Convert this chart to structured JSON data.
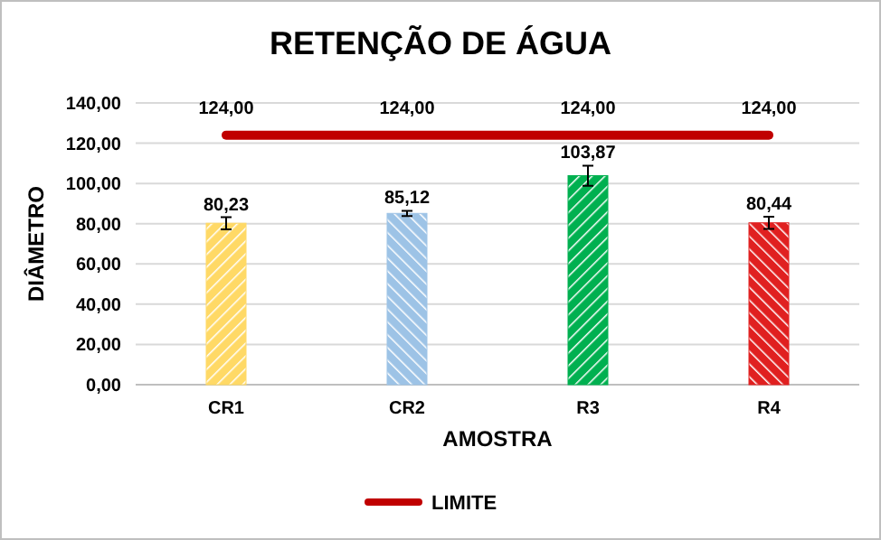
{
  "chart_data": {
    "type": "bar",
    "title": "RETENÇÃO DE ÁGUA",
    "xlabel": "AMOSTRA",
    "ylabel": "DIÂMETRO",
    "categories": [
      "CR1",
      "CR2",
      "R3",
      "R4"
    ],
    "series": [
      {
        "colors": [
          "#ffd966",
          "#9dc3e6",
          "#00b050",
          "#e02020"
        ],
        "values": [
          80.23,
          85.12,
          103.87,
          80.44
        ],
        "errors": [
          3,
          1.3,
          5,
          3
        ],
        "value_labels": [
          "80,23",
          "85,12",
          "103,87",
          "80,44"
        ]
      },
      {
        "type": "line",
        "name": "LIMITE",
        "color": "#c00000",
        "values": [
          124,
          124,
          124,
          124
        ],
        "value_labels": [
          "124,00",
          "124,00",
          "124,00",
          "124,00"
        ]
      }
    ],
    "ylim": [
      0,
      140
    ],
    "yticks": [
      {
        "value": 0,
        "label": "0,00"
      },
      {
        "value": 20,
        "label": "20,00"
      },
      {
        "value": 40,
        "label": "40,00"
      },
      {
        "value": 60,
        "label": "60,00"
      },
      {
        "value": 80,
        "label": "80,00"
      },
      {
        "value": 100,
        "label": "100,00"
      },
      {
        "value": 120,
        "label": "120,00"
      },
      {
        "value": 140,
        "label": "140,00"
      }
    ],
    "grid": "y",
    "legend": "bottom"
  }
}
